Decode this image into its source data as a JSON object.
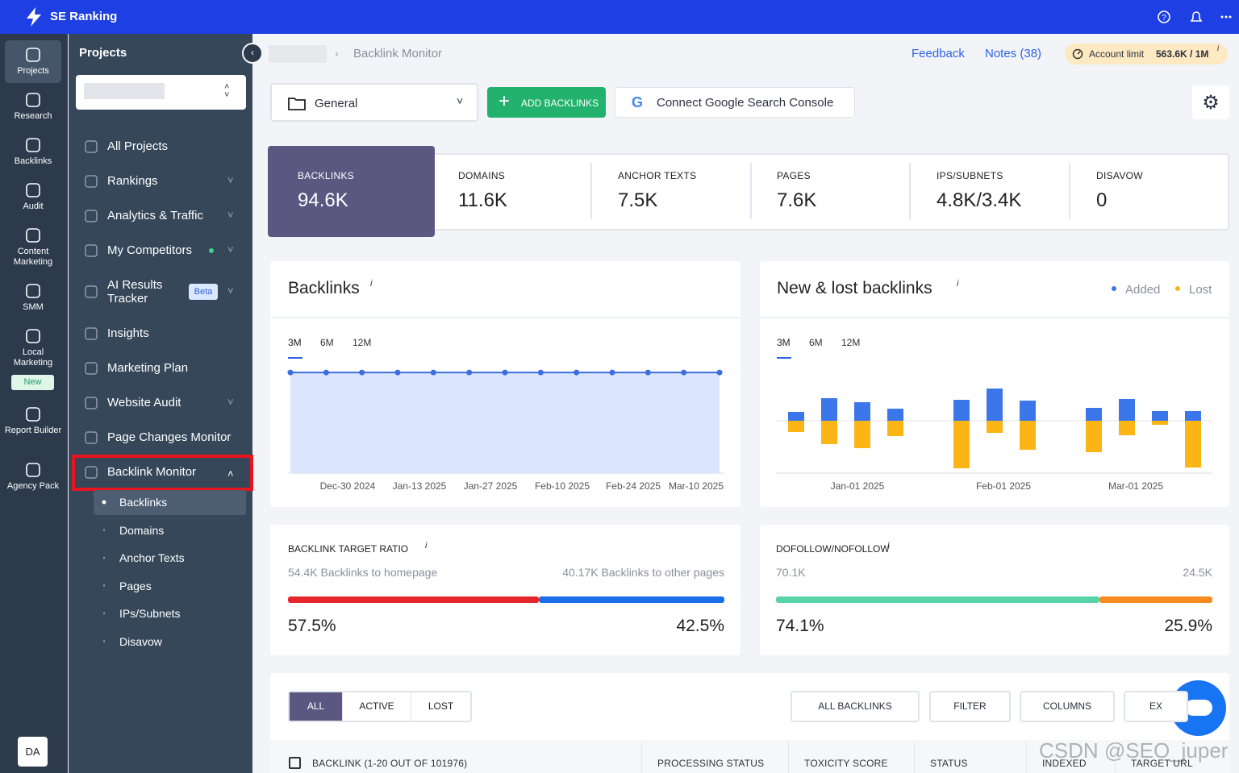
{
  "topbar": {
    "brand": "SE Ranking"
  },
  "icon_nav": [
    {
      "label": "Projects"
    },
    {
      "label": "Research"
    },
    {
      "label": "Backlinks"
    },
    {
      "label": "Audit"
    },
    {
      "label": "Content Marketing"
    },
    {
      "label": "SMM"
    },
    {
      "label": "Local Marketing",
      "badge": "New"
    },
    {
      "label": "Report Builder"
    },
    {
      "label": "Agency Pack"
    }
  ],
  "avatar": "DA",
  "side_menu": {
    "title": "Projects",
    "items": [
      {
        "label": "All Projects"
      },
      {
        "label": "Rankings"
      },
      {
        "label": "Analytics & Traffic"
      },
      {
        "label": "My Competitors"
      },
      {
        "label": "AI Results Tracker",
        "badge": "Beta"
      },
      {
        "label": "Insights"
      },
      {
        "label": "Marketing Plan"
      },
      {
        "label": "Website Audit"
      },
      {
        "label": "Page Changes Monitor"
      },
      {
        "label": "Backlink Monitor"
      }
    ],
    "sub_items": [
      "Backlinks",
      "Domains",
      "Anchor Texts",
      "Pages",
      "IPs/Subnets",
      "Disavow"
    ]
  },
  "header": {
    "breadcrumb": "Backlink Monitor",
    "feedback": "Feedback",
    "notes": "Notes (38)",
    "limit_label": "Account limit",
    "limit_value": "563.6K / 1M",
    "info": "i"
  },
  "toolbar": {
    "folder": "General",
    "add": "ADD BACKLINKS",
    "gsc": "Connect Google Search Console"
  },
  "stats": [
    {
      "label": "BACKLINKS",
      "value": "94.6K"
    },
    {
      "label": "DOMAINS",
      "value": "11.6K"
    },
    {
      "label": "ANCHOR TEXTS",
      "value": "7.5K"
    },
    {
      "label": "PAGES",
      "value": "7.6K"
    },
    {
      "label": "IPS/SUBNETS",
      "value": "4.8K/3.4K"
    },
    {
      "label": "DISAVOW",
      "value": "0"
    }
  ],
  "backlinks_chart": {
    "type": "line",
    "title": "Backlinks",
    "info": "i",
    "ranges": [
      "3M",
      "6M",
      "12M"
    ],
    "x_labels": [
      "Dec-30 2024",
      "Jan-13 2025",
      "Jan-27 2025",
      "Feb-10 2025",
      "Feb-24 2025",
      "Mar-10 2025"
    ],
    "values": [
      94.6,
      94.6,
      94.6,
      94.6,
      94.6,
      94.6,
      94.6,
      94.6,
      94.6,
      94.6,
      94.6,
      94.6,
      94.6
    ],
    "ylim": [
      0,
      100
    ],
    "color": "#3b6fe0"
  },
  "new_lost_chart": {
    "type": "bar",
    "title": "New & lost backlinks",
    "info": "i",
    "ranges": [
      "3M",
      "6M",
      "12M"
    ],
    "x_labels": [
      "Jan-01 2025",
      "Feb-01 2025",
      "Mar-01 2025"
    ],
    "series": [
      {
        "name": "Added",
        "color": "#3b76ea",
        "values": [
          11,
          28,
          23,
          15,
          null,
          26,
          40,
          25,
          null,
          16,
          27,
          12,
          12
        ]
      },
      {
        "name": "Lost",
        "color": "#fbb515",
        "values": [
          -14,
          -29,
          -34,
          -19,
          null,
          -59,
          -15,
          -36,
          null,
          -39,
          -18,
          -5,
          -58
        ]
      }
    ],
    "ylim": [
      -65,
      65
    ]
  },
  "target_ratio": {
    "title": "BACKLINK TARGET RATIO",
    "info": "i",
    "left_text": "54.4K Backlinks to homepage",
    "right_text": "40.17K Backlinks to other pages",
    "values": [
      57.5,
      42.5
    ],
    "value_labels": [
      "57.5%",
      "42.5%"
    ],
    "colors": [
      "#e5262b",
      "#1c6ee8"
    ]
  },
  "follow_ratio": {
    "title": "DOFOLLOW/NOFOLLOW",
    "info": "i",
    "left_text": "70.1K",
    "right_text": "24.5K",
    "values": [
      74.1,
      25.9
    ],
    "value_labels": [
      "74.1%",
      "25.9%"
    ],
    "colors": [
      "#58d3a6",
      "#f78b1f"
    ]
  },
  "table": {
    "tabs": [
      "ALL",
      "ACTIVE",
      "LOST"
    ],
    "filter_select": "ALL BACKLINKS",
    "filter": "FILTER",
    "columns": "COLUMNS",
    "export": "EX",
    "headers": [
      "BACKLINK (1-20 OUT OF 101976)",
      "PROCESSING STATUS",
      "TOXICITY SCORE",
      "STATUS",
      "INDEXED",
      "TARGET URL"
    ]
  },
  "watermark": "CSDN @SEO_juper"
}
